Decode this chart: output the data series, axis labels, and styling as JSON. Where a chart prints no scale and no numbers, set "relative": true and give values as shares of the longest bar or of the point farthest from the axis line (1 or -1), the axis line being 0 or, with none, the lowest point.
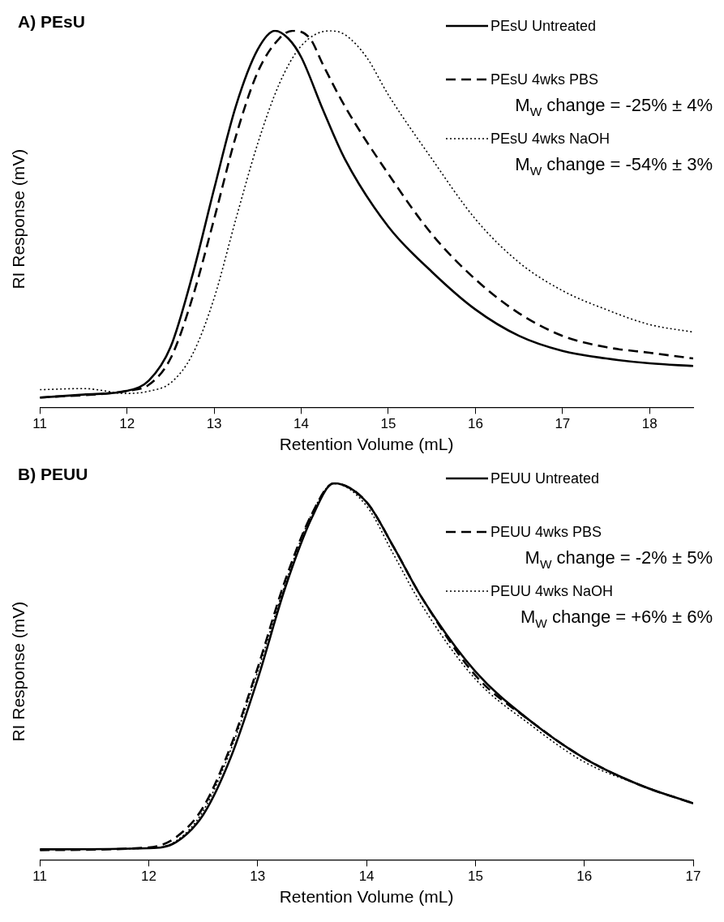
{
  "chart_data": [
    {
      "type": "line",
      "title": "A) PEsU",
      "xlabel": "Retention Volume (mL)",
      "ylabel": "RI Response (mV)",
      "relative": true,
      "xlim": [
        11,
        18.5
      ],
      "xticks": [
        11,
        12,
        13,
        14,
        15,
        16,
        17,
        18
      ],
      "grid": false,
      "legend": "top right",
      "marker": "none",
      "annotations": [
        "M$_{W}$ change = -25% ± 4%",
        "M$_{W}$ change = -54% ± 3%"
      ],
      "series": [
        {
          "name": "PEsU Untreated",
          "color": "#000000",
          "line_style": "solid",
          "x": [
            11,
            11.5,
            12,
            12.25,
            12.5,
            12.75,
            13,
            13.25,
            13.5,
            13.7,
            13.85,
            14,
            14.25,
            14.5,
            15,
            15.5,
            16,
            16.5,
            17,
            17.5,
            18,
            18.5
          ],
          "values": [
            0.026,
            0.034,
            0.044,
            0.071,
            0.16,
            0.35,
            0.58,
            0.8,
            0.95,
            1,
            0.98,
            0.93,
            0.79,
            0.66,
            0.48,
            0.36,
            0.26,
            0.19,
            0.15,
            0.13,
            0.117,
            0.11
          ]
        },
        {
          "name": "PEsU 4wks PBS",
          "color": "#000000",
          "line_style": "dashed",
          "x": [
            11,
            12,
            12.25,
            12.5,
            12.75,
            13,
            13.25,
            13.5,
            13.75,
            13.9,
            14.1,
            14.25,
            14.5,
            15,
            15.5,
            16,
            16.5,
            17,
            17.5,
            18,
            18.5
          ],
          "values": [
            0.026,
            0.044,
            0.06,
            0.13,
            0.29,
            0.5,
            0.72,
            0.89,
            0.98,
            1,
            0.98,
            0.91,
            0.8,
            0.62,
            0.46,
            0.34,
            0.25,
            0.19,
            0.16,
            0.145,
            0.13
          ]
        },
        {
          "name": "PEsU 4wks NaOH",
          "color": "#000000",
          "line_style": "dotted",
          "x": [
            11,
            11.5,
            12,
            12.25,
            12.5,
            12.75,
            13,
            13.25,
            13.5,
            13.75,
            14,
            14.33,
            14.5,
            14.75,
            15,
            15.5,
            16,
            16.5,
            17,
            17.5,
            18,
            18.5
          ],
          "values": [
            0.047,
            0.05,
            0.037,
            0.043,
            0.065,
            0.14,
            0.29,
            0.5,
            0.7,
            0.86,
            0.96,
            1,
            0.99,
            0.93,
            0.83,
            0.66,
            0.5,
            0.385,
            0.31,
            0.26,
            0.22,
            0.2
          ]
        }
      ]
    },
    {
      "type": "line",
      "title": "B) PEUU",
      "xlabel": "Retention Volume (mL)",
      "ylabel": "RI Response (mV)",
      "relative": true,
      "xlim": [
        11,
        17
      ],
      "xticks": [
        11,
        12,
        13,
        14,
        15,
        16,
        17
      ],
      "grid": false,
      "legend": "top right",
      "marker": "none",
      "annotations": [
        "M$_{W}$ change = -2% ± 5%",
        "M$_{W}$ change = +6% ± 6%"
      ],
      "series": [
        {
          "name": "PEUU Untreated",
          "color": "#000000",
          "line_style": "solid",
          "x": [
            11,
            12,
            12.25,
            12.5,
            12.75,
            13,
            13.25,
            13.5,
            13.7,
            14,
            14.25,
            14.5,
            15,
            15.5,
            16,
            16.5,
            17
          ],
          "values": [
            0.028,
            0.031,
            0.047,
            0.12,
            0.27,
            0.48,
            0.72,
            0.91,
            1,
            0.95,
            0.83,
            0.7,
            0.5,
            0.37,
            0.27,
            0.2,
            0.15
          ]
        },
        {
          "name": "PEUU 4wks PBS",
          "color": "#000000",
          "line_style": "dashed",
          "x": [
            11,
            12,
            12.25,
            12.5,
            12.75,
            13,
            13.25,
            13.5,
            13.7,
            14,
            14.25,
            14.5,
            15,
            15.5,
            16,
            16.5,
            17
          ],
          "values": [
            0.026,
            0.033,
            0.06,
            0.14,
            0.3,
            0.51,
            0.74,
            0.92,
            1,
            0.95,
            0.83,
            0.7,
            0.49,
            0.37,
            0.27,
            0.2,
            0.15
          ]
        },
        {
          "name": "PEUU 4wks NaOH",
          "color": "#000000",
          "line_style": "dotted",
          "x": [
            11,
            12,
            12.25,
            12.5,
            12.75,
            13,
            13.25,
            13.5,
            13.7,
            14,
            14.25,
            14.5,
            15,
            15.5,
            16,
            16.5,
            17
          ],
          "values": [
            0.028,
            0.031,
            0.05,
            0.13,
            0.29,
            0.5,
            0.73,
            0.92,
            1,
            0.94,
            0.81,
            0.68,
            0.48,
            0.36,
            0.26,
            0.2,
            0.15
          ]
        }
      ]
    }
  ]
}
